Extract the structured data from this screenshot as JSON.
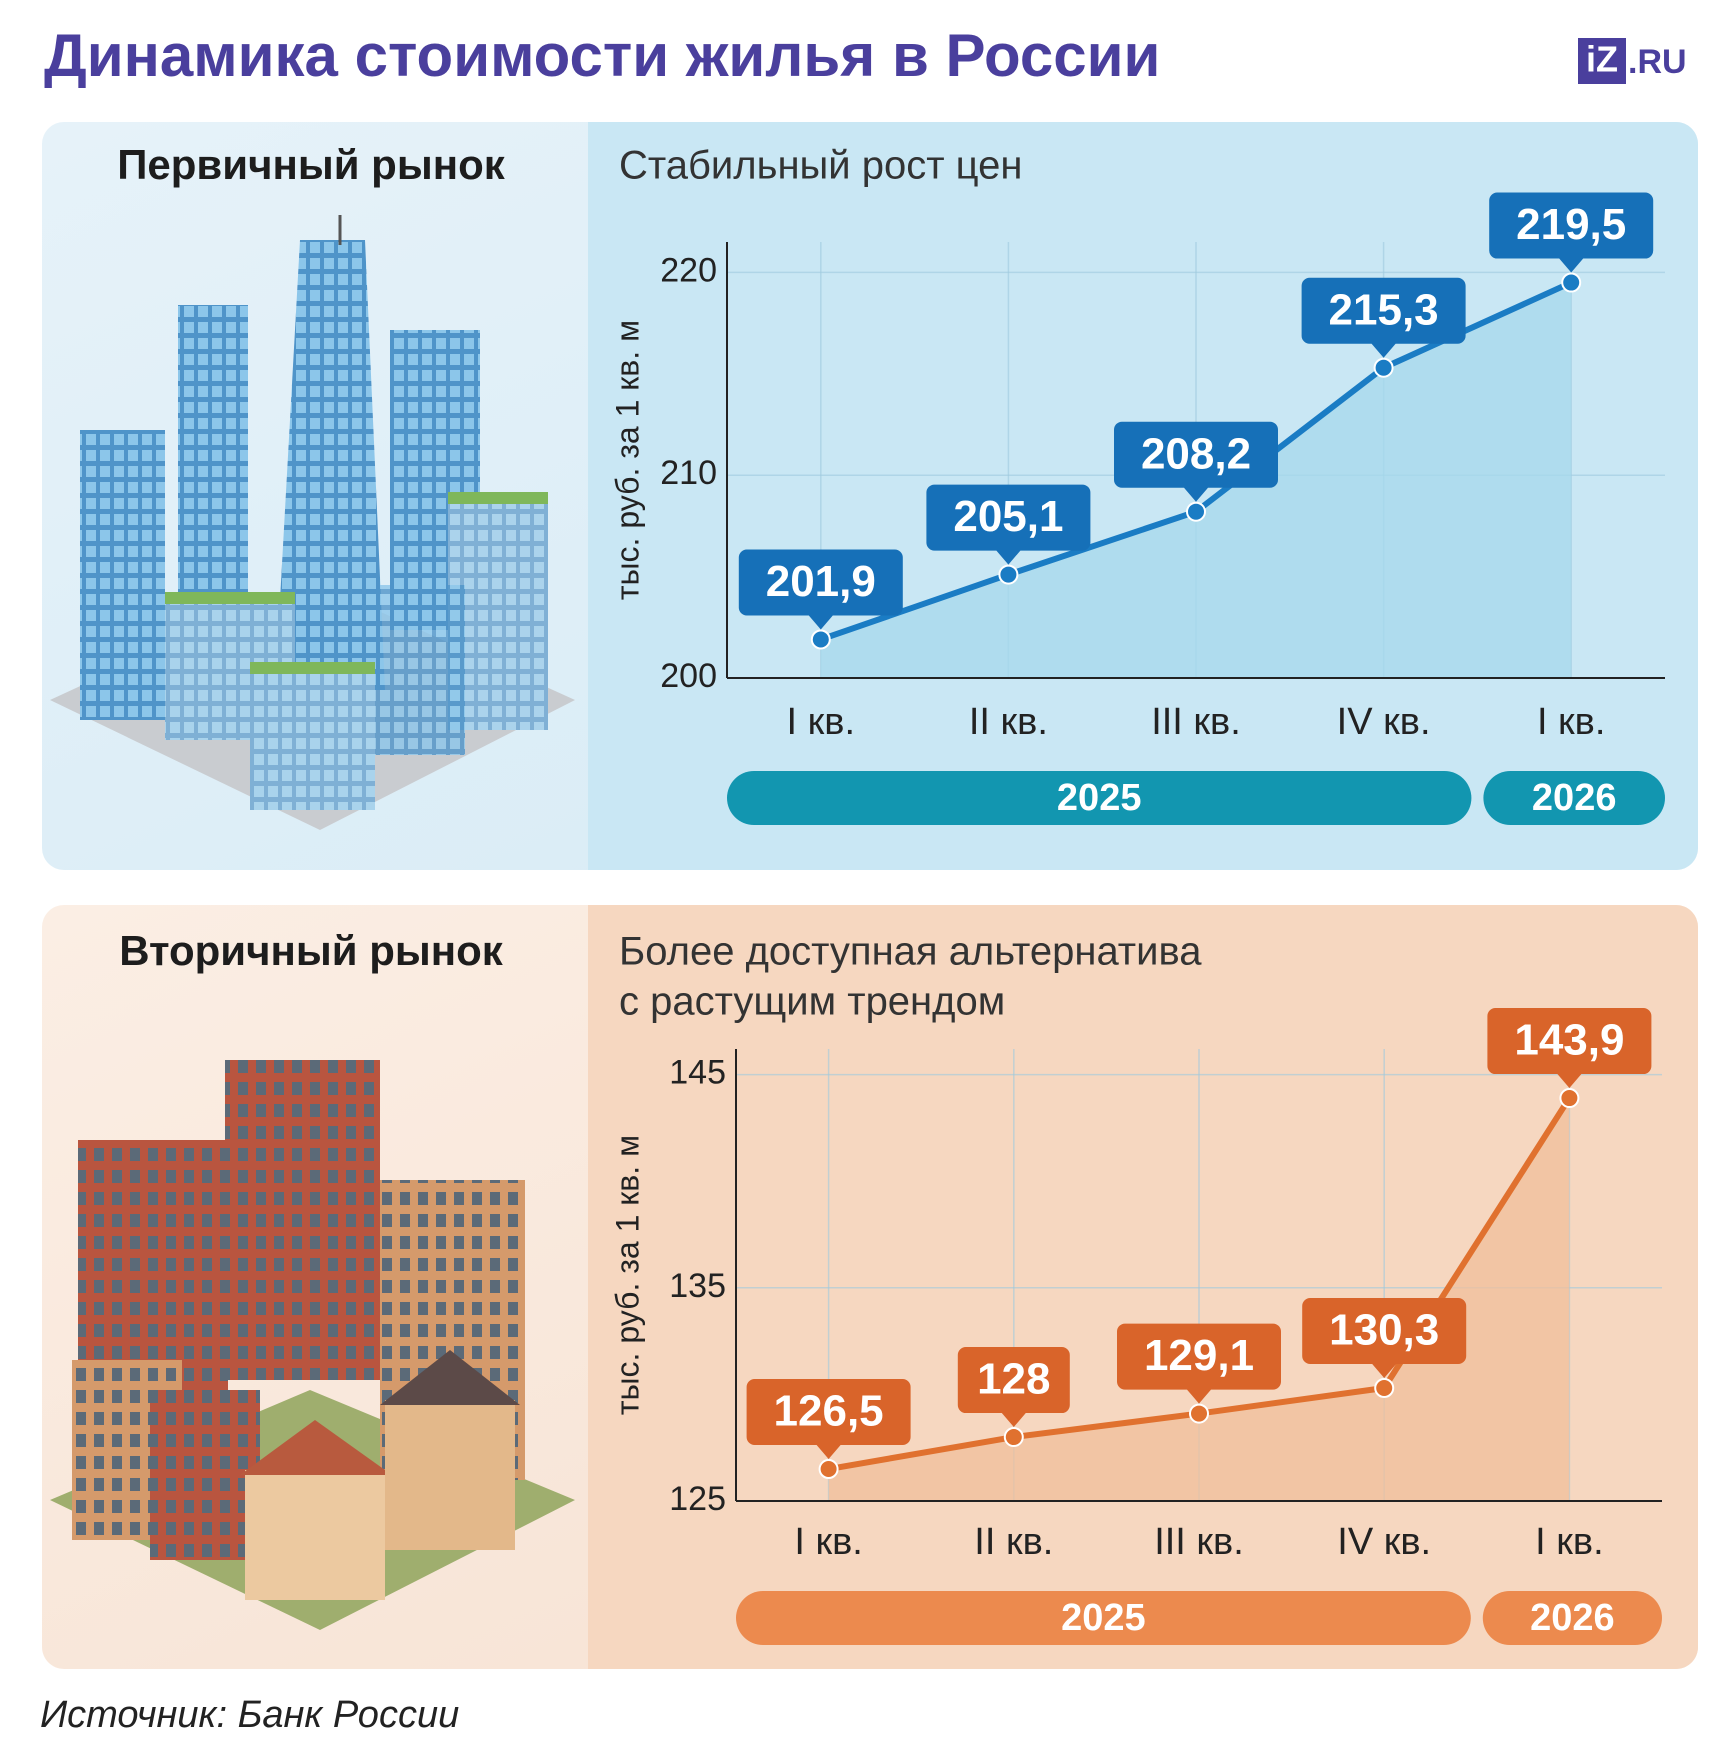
{
  "title": "Динамика стоимости жилья в России",
  "logo": {
    "main": "iZ",
    "suffix": ".RU"
  },
  "source": "Источник: Банк России",
  "chart_data": [
    {
      "type": "line",
      "section": "Первичный рынок",
      "title": [
        "Стабильный рост цен"
      ],
      "ylabel": "тыс. руб. за 1 кв. м",
      "categories": [
        "I кв.",
        "II кв.",
        "III кв.",
        "IV кв.",
        "I кв."
      ],
      "category_groups": [
        "2025",
        "2025",
        "2025",
        "2025",
        "2026"
      ],
      "series": [
        {
          "name": "Первичный рынок",
          "color": "#1a7cc4",
          "area_color": "#a6d8ec",
          "label_color": "#1670b8",
          "values": [
            201.9,
            205.1,
            208.2,
            215.3,
            219.5
          ],
          "value_labels": [
            "201,9",
            "205,1",
            "208,2",
            "215,3",
            "219,5"
          ]
        }
      ],
      "group_color": "#1296b0",
      "ylim": [
        200,
        221.5
      ],
      "yticks": [
        200,
        210,
        220
      ],
      "grid": true
    },
    {
      "type": "line",
      "section": "Вторичный рынок",
      "title": [
        "Более доступная альтернатива",
        "с растущим трендом"
      ],
      "ylabel": "тыс. руб. за 1 кв. м",
      "categories": [
        "I кв.",
        "II кв.",
        "III кв.",
        "IV кв.",
        "I кв."
      ],
      "category_groups": [
        "2025",
        "2025",
        "2025",
        "2025",
        "2026"
      ],
      "series": [
        {
          "name": "Вторичный рынок",
          "color": "#e0712f",
          "area_color": "#f0bf9b",
          "label_color": "#d9642a",
          "values": [
            126.5,
            128,
            129.1,
            130.3,
            143.9
          ],
          "value_labels": [
            "126,5",
            "128",
            "129,1",
            "130,3",
            "143,9"
          ]
        }
      ],
      "group_color": "#ec8a4e",
      "ylim": [
        125,
        146.2
      ],
      "yticks": [
        125,
        135,
        145
      ],
      "grid": true
    }
  ]
}
